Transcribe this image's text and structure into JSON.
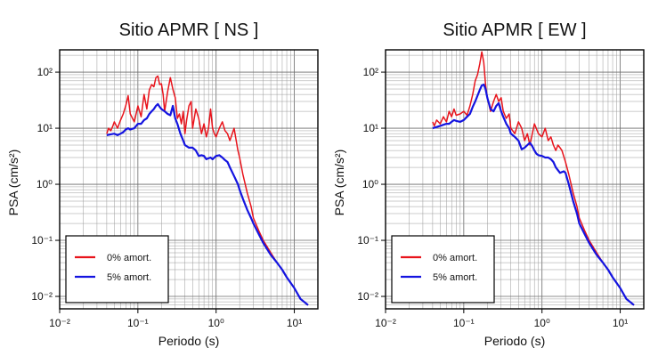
{
  "chart_data": [
    {
      "type": "line",
      "title": "Sitio APMR [ NS ]",
      "xlabel": "Periodo (s)",
      "ylabel": "PSA (cm/s²)",
      "xscale": "log",
      "yscale": "log",
      "xlim": [
        0.01,
        20
      ],
      "ylim": [
        0.006,
        250
      ],
      "grid": true,
      "legend_position": "bottom-left",
      "x_ticks": [
        "10⁻²",
        "10⁻¹",
        "10⁰",
        "10¹"
      ],
      "y_ticks": [
        "10⁻²",
        "10⁻¹",
        "10⁰",
        "10¹",
        "10²"
      ],
      "series": [
        {
          "name": "0% amort.",
          "color": "#e8141c",
          "x": [
            0.04,
            0.042,
            0.045,
            0.048,
            0.05,
            0.055,
            0.06,
            0.065,
            0.07,
            0.075,
            0.08,
            0.09,
            0.1,
            0.11,
            0.12,
            0.13,
            0.14,
            0.15,
            0.16,
            0.17,
            0.18,
            0.19,
            0.2,
            0.21,
            0.22,
            0.24,
            0.26,
            0.28,
            0.3,
            0.32,
            0.34,
            0.36,
            0.38,
            0.4,
            0.42,
            0.45,
            0.48,
            0.5,
            0.55,
            0.6,
            0.65,
            0.7,
            0.75,
            0.8,
            0.85,
            0.9,
            0.95,
            1.0,
            1.1,
            1.2,
            1.3,
            1.4,
            1.5,
            1.7,
            1.9,
            2.0,
            2.2,
            2.5,
            2.8,
            3.0,
            3.5,
            4.0,
            5.0,
            6.0,
            7.0,
            8.0,
            10.0,
            12.0,
            15.0
          ],
          "y": [
            8,
            10,
            9,
            11,
            13,
            10,
            14,
            18,
            25,
            38,
            18,
            13,
            25,
            16,
            40,
            22,
            48,
            60,
            55,
            80,
            85,
            60,
            62,
            40,
            20,
            45,
            80,
            50,
            35,
            15,
            18,
            12,
            20,
            8,
            14,
            25,
            30,
            10,
            22,
            15,
            8,
            12,
            7,
            10,
            22,
            10,
            8,
            7,
            10,
            13,
            9,
            8,
            6,
            10,
            4,
            3,
            1.5,
            0.7,
            0.4,
            0.25,
            0.15,
            0.1,
            0.06,
            0.04,
            0.03,
            0.022,
            0.014,
            0.009,
            0.007
          ]
        },
        {
          "name": "5% amort.",
          "color": "#1414e0",
          "x": [
            0.04,
            0.045,
            0.05,
            0.055,
            0.06,
            0.065,
            0.07,
            0.075,
            0.08,
            0.09,
            0.1,
            0.11,
            0.12,
            0.13,
            0.14,
            0.15,
            0.16,
            0.17,
            0.18,
            0.19,
            0.2,
            0.22,
            0.24,
            0.26,
            0.28,
            0.3,
            0.32,
            0.35,
            0.38,
            0.4,
            0.45,
            0.5,
            0.55,
            0.6,
            0.65,
            0.7,
            0.75,
            0.8,
            0.85,
            0.9,
            1.0,
            1.1,
            1.2,
            1.3,
            1.4,
            1.5,
            1.7,
            1.9,
            2.0,
            2.2,
            2.5,
            2.8,
            3.0,
            3.5,
            4.0,
            5.0,
            6.0,
            7.0,
            8.0,
            10.0,
            12.0,
            15.0
          ],
          "y": [
            7.5,
            7.8,
            8,
            7.5,
            8,
            8.5,
            9.5,
            10,
            9.5,
            10,
            12,
            12,
            14,
            15,
            18,
            20,
            22,
            25,
            27,
            24,
            22,
            20,
            18,
            17,
            25,
            15,
            12,
            8,
            6,
            5,
            4.5,
            4.5,
            4,
            3.2,
            3.3,
            3.2,
            2.8,
            2.9,
            3.0,
            2.8,
            3.2,
            3.3,
            3.0,
            2.7,
            2.5,
            2.0,
            1.4,
            1.0,
            0.8,
            0.55,
            0.35,
            0.25,
            0.2,
            0.13,
            0.09,
            0.055,
            0.04,
            0.03,
            0.022,
            0.014,
            0.009,
            0.007
          ]
        }
      ]
    },
    {
      "type": "line",
      "title": "Sitio APMR [ EW ]",
      "xlabel": "Periodo (s)",
      "ylabel": "PSA (cm/s²)",
      "xscale": "log",
      "yscale": "log",
      "xlim": [
        0.01,
        20
      ],
      "ylim": [
        0.006,
        250
      ],
      "grid": true,
      "legend_position": "bottom-left",
      "x_ticks": [
        "10⁻²",
        "10⁻¹",
        "10⁰",
        "10¹"
      ],
      "y_ticks": [
        "10⁻²",
        "10⁻¹",
        "10⁰",
        "10¹",
        "10²"
      ],
      "series": [
        {
          "name": "0% amort.",
          "color": "#e8141c",
          "x": [
            0.04,
            0.042,
            0.045,
            0.05,
            0.055,
            0.06,
            0.065,
            0.07,
            0.075,
            0.08,
            0.09,
            0.1,
            0.11,
            0.12,
            0.13,
            0.14,
            0.15,
            0.16,
            0.17,
            0.18,
            0.19,
            0.2,
            0.22,
            0.24,
            0.26,
            0.28,
            0.3,
            0.32,
            0.35,
            0.38,
            0.4,
            0.45,
            0.5,
            0.55,
            0.6,
            0.65,
            0.7,
            0.8,
            0.9,
            1.0,
            1.1,
            1.2,
            1.3,
            1.4,
            1.5,
            1.6,
            1.7,
            1.8,
            2.0,
            2.2,
            2.5,
            2.8,
            3.0,
            3.5,
            4.0,
            5.0,
            6.0,
            7.0,
            8.0,
            10.0,
            12.0,
            15.0
          ],
          "y": [
            13,
            11,
            14,
            12,
            16,
            13,
            20,
            16,
            22,
            17,
            18,
            20,
            17,
            25,
            40,
            70,
            90,
            140,
            230,
            150,
            60,
            35,
            20,
            30,
            40,
            30,
            35,
            20,
            15,
            18,
            10,
            8,
            13,
            10,
            6,
            8,
            5,
            12,
            8,
            7,
            10,
            6,
            7,
            5,
            4,
            5,
            4.5,
            4,
            2.5,
            1.5,
            0.7,
            0.4,
            0.25,
            0.15,
            0.1,
            0.06,
            0.04,
            0.03,
            0.022,
            0.014,
            0.009,
            0.007
          ]
        },
        {
          "name": "5% amort.",
          "color": "#1414e0",
          "x": [
            0.04,
            0.045,
            0.05,
            0.055,
            0.06,
            0.065,
            0.07,
            0.075,
            0.08,
            0.09,
            0.1,
            0.11,
            0.12,
            0.13,
            0.14,
            0.15,
            0.16,
            0.17,
            0.18,
            0.19,
            0.2,
            0.22,
            0.24,
            0.26,
            0.28,
            0.3,
            0.32,
            0.35,
            0.38,
            0.4,
            0.45,
            0.5,
            0.55,
            0.6,
            0.65,
            0.7,
            0.75,
            0.8,
            0.85,
            0.9,
            1.0,
            1.1,
            1.2,
            1.3,
            1.4,
            1.5,
            1.7,
            1.9,
            2.0,
            2.2,
            2.5,
            2.8,
            3.0,
            3.5,
            4.0,
            5.0,
            6.0,
            7.0,
            8.0,
            10.0,
            12.0,
            15.0
          ],
          "y": [
            10,
            10.5,
            11,
            11.5,
            12,
            12,
            13,
            14,
            13.5,
            13,
            14,
            16,
            18,
            24,
            30,
            38,
            48,
            58,
            60,
            50,
            35,
            22,
            20,
            25,
            28,
            20,
            16,
            12,
            10,
            8,
            7,
            6,
            4.2,
            4.5,
            5,
            5.5,
            4.8,
            4.0,
            3.5,
            3.3,
            3.2,
            3.0,
            3.0,
            2.8,
            2.5,
            2.0,
            1.6,
            1.7,
            1.6,
            1.0,
            0.5,
            0.3,
            0.2,
            0.13,
            0.09,
            0.055,
            0.04,
            0.03,
            0.022,
            0.014,
            0.009,
            0.007
          ]
        }
      ]
    }
  ]
}
